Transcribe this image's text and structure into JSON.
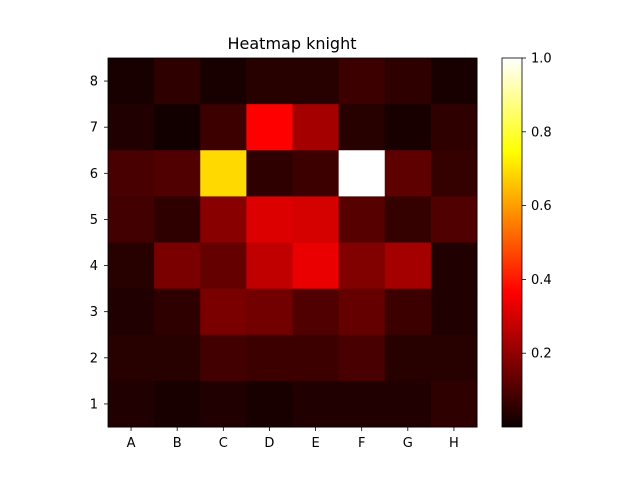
{
  "chart_data": {
    "type": "heatmap",
    "title": "Heatmap knight",
    "xlabel": "",
    "ylabel": "",
    "x_categories": [
      "A",
      "B",
      "C",
      "D",
      "E",
      "F",
      "G",
      "H"
    ],
    "y_categories": [
      "8",
      "7",
      "6",
      "5",
      "4",
      "3",
      "2",
      "1"
    ],
    "values": [
      [
        0.02,
        0.05,
        0.02,
        0.04,
        0.04,
        0.07,
        0.05,
        0.02
      ],
      [
        0.03,
        0.01,
        0.07,
        0.36,
        0.22,
        0.04,
        0.02,
        0.05
      ],
      [
        0.09,
        0.1,
        0.69,
        0.05,
        0.07,
        1.0,
        0.12,
        0.06
      ],
      [
        0.08,
        0.05,
        0.18,
        0.3,
        0.29,
        0.11,
        0.06,
        0.1
      ],
      [
        0.04,
        0.16,
        0.13,
        0.26,
        0.32,
        0.17,
        0.22,
        0.03
      ],
      [
        0.03,
        0.05,
        0.16,
        0.15,
        0.1,
        0.13,
        0.07,
        0.03
      ],
      [
        0.04,
        0.04,
        0.08,
        0.07,
        0.07,
        0.09,
        0.04,
        0.04
      ],
      [
        0.03,
        0.02,
        0.03,
        0.02,
        0.03,
        0.03,
        0.03,
        0.05
      ]
    ],
    "colormap": "hot",
    "vmin": 0.0,
    "vmax": 1.0,
    "colorbar": {
      "ticks": [
        0.2,
        0.4,
        0.6,
        0.8,
        1.0
      ],
      "tick_labels": [
        "0.2",
        "0.4",
        "0.6",
        "0.8",
        "1.0"
      ]
    },
    "grid": false
  }
}
